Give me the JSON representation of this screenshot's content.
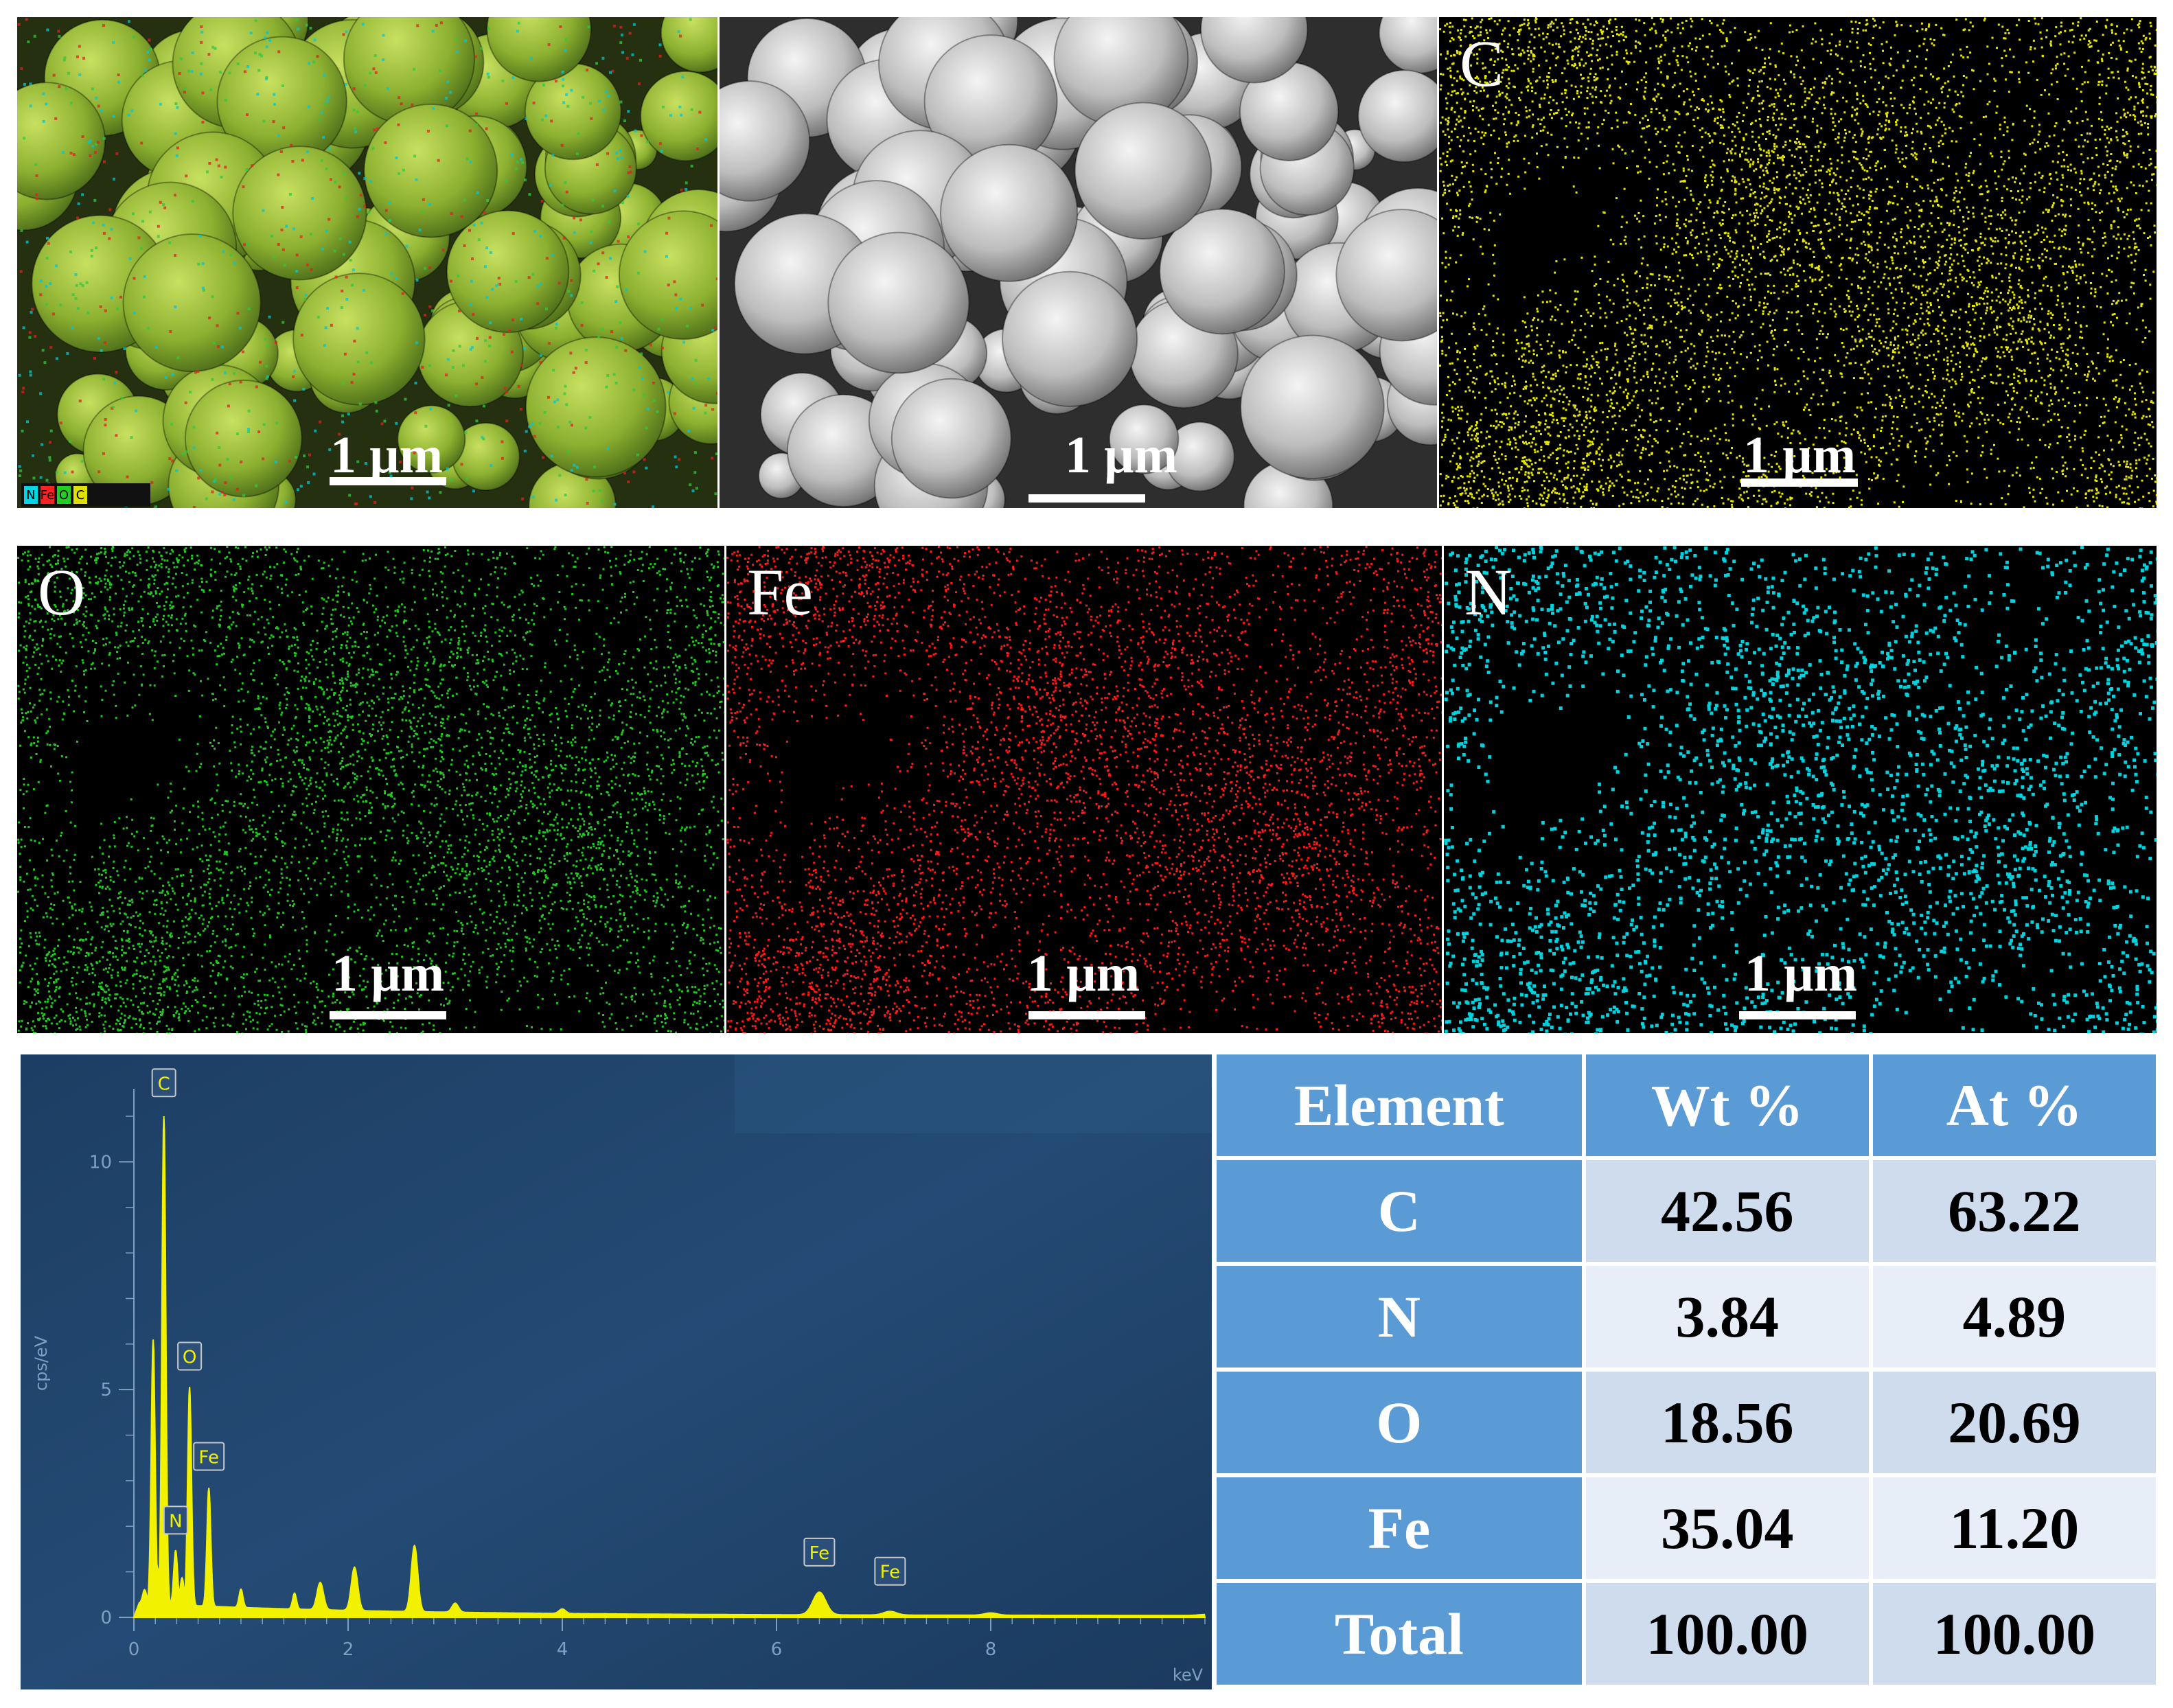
{
  "panels": {
    "overlay": {
      "scale": "1 µm",
      "legend": [
        "N",
        "Fe",
        "O",
        "C"
      ],
      "legend_colors": [
        "#00d7e6",
        "#ff2020",
        "#20d020",
        "#e0e000"
      ]
    },
    "sem": {
      "scale": "1 µm"
    },
    "c_map": {
      "label": "C",
      "scale": "1 µm",
      "color": "#e6e600"
    },
    "o_map": {
      "label": "O",
      "scale": "1 µm",
      "color": "#22c822"
    },
    "fe_map": {
      "label": "Fe",
      "scale": "1 µm",
      "color": "#ff1a1a"
    },
    "n_map": {
      "label": "N",
      "scale": "1 µm",
      "color": "#00d2e0"
    }
  },
  "spectrum": {
    "ylabel": "cps/eV",
    "xlabel": "keV",
    "yticks": [
      "0",
      "5",
      "10"
    ],
    "xticks": [
      "0",
      "2",
      "4",
      "6",
      "8"
    ],
    "peak_labels": [
      "C",
      "O",
      "Fe",
      "N",
      "Fe",
      "Fe"
    ]
  },
  "table": {
    "headers": [
      "Element",
      "Wt %",
      "At %"
    ],
    "rows": [
      [
        "C",
        "42.56",
        "63.22"
      ],
      [
        "N",
        "3.84",
        "4.89"
      ],
      [
        "O",
        "18.56",
        "20.69"
      ],
      [
        "Fe",
        "35.04",
        "11.20"
      ],
      [
        "Total",
        "100.00",
        "100.00"
      ]
    ]
  },
  "chart_data": {
    "type": "line",
    "xlabel": "keV",
    "ylabel": "cps/eV",
    "xlim": [
      0,
      10
    ],
    "ylim": [
      0,
      11
    ],
    "series": [
      {
        "x": [
          0.1,
          0.18,
          0.22,
          0.28,
          0.39,
          0.45,
          0.52,
          0.7,
          1.0,
          1.5,
          1.74,
          2.06,
          2.62,
          3.0,
          4.0,
          6.4,
          7.06,
          8.0,
          10.0
        ],
        "values": [
          0.3,
          5.8,
          0.8,
          10.8,
          1.2,
          0.6,
          4.8,
          2.6,
          0.4,
          0.35,
          0.6,
          0.95,
          1.45,
          0.2,
          0.1,
          0.5,
          0.08,
          0.05,
          0.02
        ]
      }
    ],
    "annotations": [
      {
        "label": "C",
        "x": 0.28,
        "y": 10.8
      },
      {
        "label": "O",
        "x": 0.52,
        "y": 4.8
      },
      {
        "label": "Fe",
        "x": 0.7,
        "y": 2.6
      },
      {
        "label": "N",
        "x": 0.39,
        "y": 1.2
      },
      {
        "label": "Fe",
        "x": 6.4,
        "y": 0.5
      },
      {
        "label": "Fe",
        "x": 7.06,
        "y": 0.08
      }
    ]
  }
}
